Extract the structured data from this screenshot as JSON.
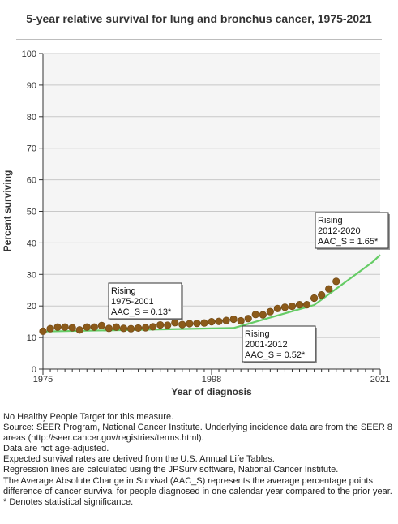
{
  "chart_data": {
    "type": "line",
    "title": "5-year relative survival for lung and bronchus cancer, 1975-2021",
    "xlabel": "Year of diagnosis",
    "ylabel": "Percent surviving",
    "xlim": [
      1975,
      2021
    ],
    "ylim": [
      0,
      100
    ],
    "x_ticks": [
      1975,
      1998,
      2021
    ],
    "y_ticks": [
      0,
      10,
      20,
      30,
      40,
      50,
      60,
      70,
      80,
      90,
      100
    ],
    "grid": "horizontal",
    "colors": {
      "observed": "#8b5a1a",
      "observed_edge": "#6b4410",
      "trend": "#66cc66",
      "plot_bg": "#f5f5f5",
      "grid": "#c8c8c8"
    },
    "observed": {
      "x": [
        1975,
        1976,
        1977,
        1978,
        1979,
        1980,
        1981,
        1982,
        1983,
        1984,
        1985,
        1986,
        1987,
        1988,
        1989,
        1990,
        1991,
        1992,
        1993,
        1994,
        1995,
        1996,
        1997,
        1998,
        1999,
        2000,
        2001,
        2002,
        2003,
        2004,
        2005,
        2006,
        2007,
        2008,
        2009,
        2010,
        2011,
        2012,
        2013,
        2014,
        2015,
        2016
      ],
      "y": [
        12.0,
        12.8,
        13.3,
        13.3,
        13.1,
        12.4,
        13.3,
        13.3,
        13.8,
        12.9,
        13.3,
        12.9,
        12.8,
        13.0,
        13.1,
        13.4,
        14.0,
        13.9,
        14.7,
        14.1,
        14.4,
        14.5,
        14.6,
        15.0,
        15.1,
        15.4,
        15.8,
        15.3,
        16.0,
        17.3,
        17.2,
        18.2,
        19.2,
        19.6,
        19.9,
        20.4,
        20.4,
        22.5,
        23.5,
        25.4,
        27.8,
        null
      ]
    },
    "trend": {
      "x": [
        1975,
        2001,
        2012,
        2020,
        2021
      ],
      "y": [
        11.9,
        13.0,
        20.3,
        34.0,
        36.2
      ]
    },
    "annotations": [
      {
        "lines": [
          "Rising",
          "1975-2001",
          "AAC_S =  0.13*"
        ]
      },
      {
        "lines": [
          "Rising",
          "2001-2012",
          "AAC_S =  0.52*"
        ]
      },
      {
        "lines": [
          "Rising",
          "2012-2020",
          "AAC_S =  1.65*"
        ]
      }
    ]
  },
  "notes": [
    "No Healthy People Target for this measure.",
    "Source: SEER Program, National Cancer Institute. Underlying incidence data are from the SEER 8 areas (http://seer.cancer.gov/registries/terms.html).",
    "Data are not age-adjusted.",
    "Expected survival rates are derived from the U.S. Annual Life Tables.",
    "Regression lines are calculated using the JPSurv software, National Cancer Institute.",
    "The Average Absolute Change in Survival (AAC_S) represents the average percentage points difference of cancer survival for people diagnosed in one calendar year compared to the prior year.",
    "* Denotes statistical significance."
  ]
}
